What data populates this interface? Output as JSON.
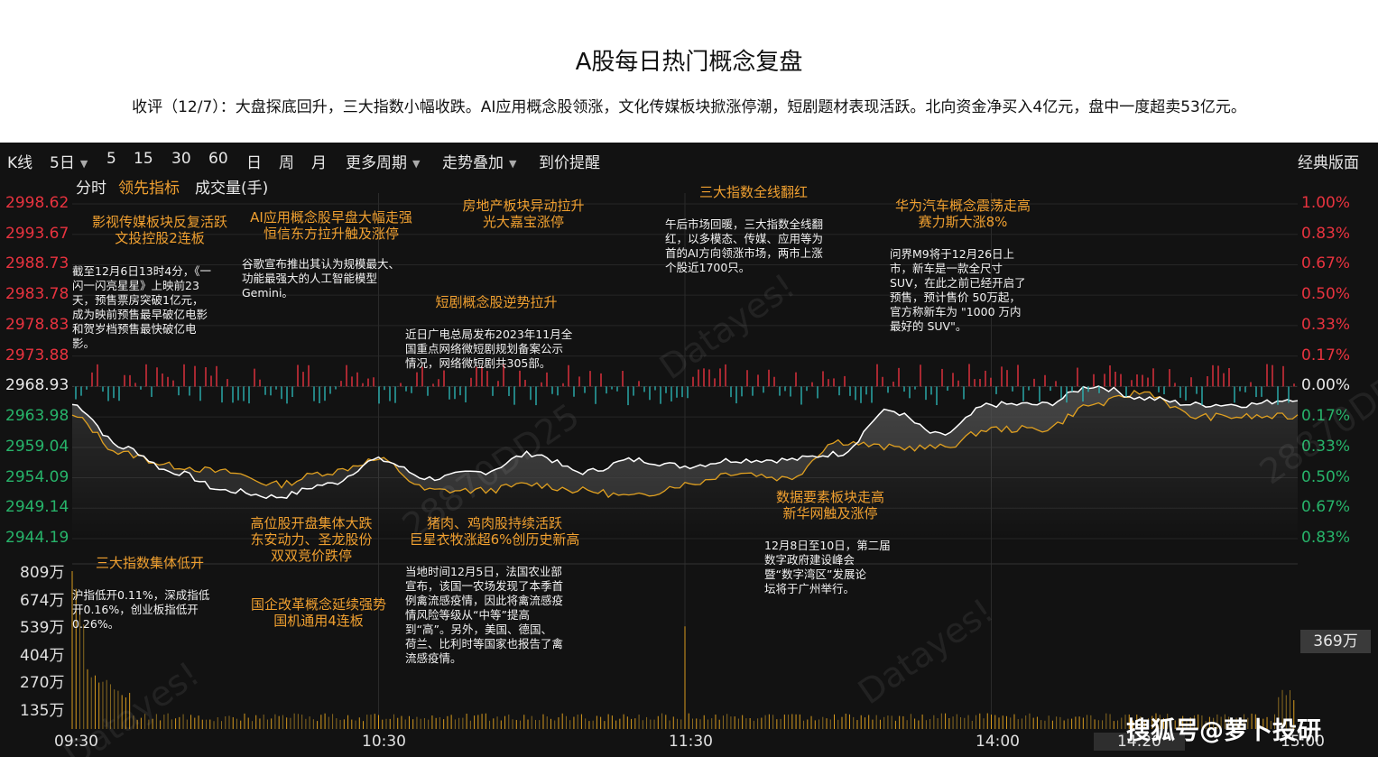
{
  "title": "A股每日热门概念复盘",
  "summary": "收评（12/7）：大盘探底回升，三大指数小幅收跌。AI应用概念股领涨，文化传媒板块掀涨停潮，短剧题材表现活跃。北向资金净买入4亿元，盘中一度超卖53亿元。",
  "toolbar": {
    "kline": "K线",
    "period_5d": "5日",
    "p5": "5",
    "p15": "15",
    "p30": "30",
    "p60": "60",
    "day": "日",
    "week": "周",
    "month": "月",
    "more_periods": "更多周期",
    "overlay": "走势叠加",
    "price_alert": "到价提醒",
    "classic_layout": "经典版面"
  },
  "subtoolbar": {
    "intraday": "分时",
    "leading": "领先指标",
    "volume": "成交量(手)"
  },
  "price_axis": {
    "left": [
      "2998.62",
      "2993.67",
      "2988.73",
      "2983.78",
      "2978.83",
      "2973.88",
      "2968.93",
      "2963.98",
      "2959.04",
      "2954.09",
      "2949.14",
      "2944.19"
    ],
    "right": [
      "1.00%",
      "0.83%",
      "0.67%",
      "0.50%",
      "0.33%",
      "0.17%",
      "0.00%",
      "0.17%",
      "0.33%",
      "0.50%",
      "0.67%",
      "0.83%"
    ]
  },
  "volume_axis": [
    "809万",
    "674万",
    "539万",
    "404万",
    "270万",
    "135万"
  ],
  "volume_now": "369万",
  "time_axis": [
    "09:30",
    "10:30",
    "11:30",
    "14:00",
    "14:20",
    "15:00"
  ],
  "colors": {
    "up": "#e8333f",
    "down": "#27b46a",
    "neutral": "#e8e8e8",
    "accent": "#f0a030",
    "index_line": "#ffffff",
    "leading_line": "#e0a020"
  },
  "annotations": [
    {
      "title": [
        "影视传媒板块反复活跃",
        "文投控股2连板"
      ],
      "body": [
        "截至12月6日13时4分，《一",
        "闪一闪亮星星》上映前23",
        "天，预售票房突破1亿元，",
        "成为映前预售最早破亿电影",
        "和贺岁档预售最快破亿电",
        "影。"
      ]
    },
    {
      "title": [
        "AI应用概念股早盘大幅走强",
        "恒信东方拉升触及涨停"
      ],
      "body": [
        "谷歌宣布推出其认为规模最大、",
        "功能最强大的人工智能模型",
        "Gemini。"
      ]
    },
    {
      "title": [
        "房地产板块异动拉升",
        "光大嘉宝涨停"
      ],
      "body": []
    },
    {
      "title": [
        "短剧概念股逆势拉升"
      ],
      "body": [
        "近日广电总局发布2023年11月全",
        "国重点网络微短剧规划备案公示",
        "情况，网络微短剧共305部。"
      ]
    },
    {
      "title": [
        "三大指数全线翻红"
      ],
      "body": [
        "午后市场回暖，三大指数全线翻",
        "红，以多模态、传媒、应用等为",
        "首的AI方向领涨市场，两市上涨",
        "个股近1700只。"
      ]
    },
    {
      "title": [
        "华为汽车概念震荡走高",
        "赛力斯大涨8%"
      ],
      "body": [
        "问界M9将于12月26日上",
        "市，新车是一款全尺寸",
        "SUV，在此之前已经开启了",
        "预售，预计售价 50万起，",
        "官方称新车为 \"1000 万内",
        "最好的 SUV\"。"
      ]
    },
    {
      "title": [
        "数据要素板块走高",
        "新华网触及涨停"
      ],
      "body": [
        "12月8日至10日，第二届",
        "数字政府建设峰会",
        "暨“数字湾区”发展论",
        "坛将于广州举行。"
      ]
    },
    {
      "title": [
        "三大指数集体低开"
      ],
      "body": [
        "沪指低开0.11%，深成指低",
        "开0.16%，创业板指低开",
        "0.26%。"
      ]
    },
    {
      "title": [
        "高位股开盘集体大跌",
        "东安动力、圣龙股份",
        "双双竞价跌停"
      ],
      "body": []
    },
    {
      "title": [
        "国企改革概念延续强势",
        "国机通用4连板"
      ],
      "body": []
    },
    {
      "title": [
        "猪肉、鸡肉股持续活跃",
        "巨星衣牧涨超6%创历史新高"
      ],
      "body": [
        "当地时间12月5日，法国农业部",
        "宣布，该国一农场发现了本季首",
        "例禽流感疫情，因此将禽流感疫",
        "情风险等级从“中等”提高",
        "到“高”。另外，美国、德国、",
        "荷兰、比利时等国家也报告了禽",
        "流感疫情。"
      ]
    }
  ],
  "watermarks": [
    "Datayes!",
    "Datayes!",
    "Datayes!",
    "28870DD25",
    "28870DD25"
  ],
  "brand_watermark": "搜狐号@萝卜投研",
  "chart_data": {
    "type": "line",
    "xlabel": "",
    "ylabel": "",
    "x_ticks": [
      "09:30",
      "10:30",
      "11:30",
      "14:00",
      "15:00"
    ],
    "ylim": [
      2944.19,
      2998.62
    ],
    "prev_close": 2968.93,
    "series": [
      {
        "name": "",
        "x": [
          0,
          10,
          20,
          30,
          40,
          50,
          60,
          70,
          80,
          90,
          100,
          110,
          120,
          130,
          140,
          150,
          160,
          170,
          180,
          190,
          200,
          210,
          220,
          230,
          240
        ],
        "values": [
          2966,
          2959,
          2955,
          2952,
          2951,
          2953,
          2957,
          2954,
          2955,
          2958,
          2955,
          2957,
          2956,
          2957,
          2957,
          2958,
          2965,
          2961,
          2966,
          2966,
          2969,
          2967,
          2966,
          2966,
          2967
        ]
      },
      {
        "name": "",
        "x": [
          0,
          10,
          20,
          30,
          40,
          50,
          60,
          70,
          80,
          90,
          100,
          110,
          120,
          130,
          140,
          150,
          160,
          170,
          180,
          190,
          200,
          210,
          220,
          230,
          240
        ],
        "values": [
          2964,
          2958,
          2956,
          2955,
          2953,
          2955,
          2957,
          2952,
          2952,
          2953,
          2952,
          2951,
          2953,
          2955,
          2954,
          2960,
          2959,
          2959,
          2962,
          2962,
          2966,
          2968,
          2964,
          2964,
          2964
        ]
      }
    ],
    "volume_ylim": [
      0,
      809
    ],
    "volume_unit": "万"
  }
}
